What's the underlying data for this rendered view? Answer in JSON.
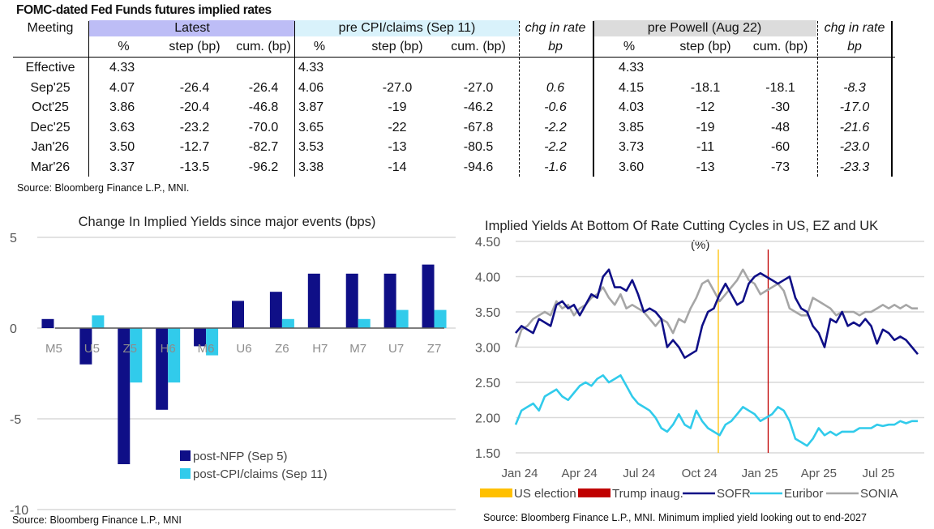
{
  "table": {
    "title": "FOMC-dated Fed Funds futures implied rates",
    "meeting_header": "Meeting",
    "groups": [
      {
        "label": "Latest",
        "color": "#bdbdf6"
      },
      {
        "label": "pre CPI/claims (Sep 11)",
        "color": "#d9f2fb"
      },
      {
        "label": "chg in rate",
        "sub": "bp"
      },
      {
        "label": "pre Powell (Aug 22)",
        "color": "#dcdcdc"
      },
      {
        "label": "chg in rate",
        "sub": "bp"
      }
    ],
    "subheaders": [
      "%",
      "step (bp)",
      "cum. (bp)"
    ],
    "rows": [
      {
        "meeting": "Effective",
        "latest": [
          "4.33",
          "",
          ""
        ],
        "pre_cpi": [
          "4.33",
          "",
          ""
        ],
        "chg1": "",
        "pre_powell": [
          "4.33",
          "",
          ""
        ],
        "chg2": ""
      },
      {
        "meeting": "Sep'25",
        "latest": [
          "4.07",
          "-26.4",
          "-26.4"
        ],
        "pre_cpi": [
          "4.06",
          "-27.0",
          "-27.0"
        ],
        "chg1": "0.6",
        "pre_powell": [
          "4.15",
          "-18.1",
          "-18.1"
        ],
        "chg2": "-8.3"
      },
      {
        "meeting": "Oct'25",
        "latest": [
          "3.86",
          "-20.4",
          "-46.8"
        ],
        "pre_cpi": [
          "3.87",
          "-19",
          "-46.2"
        ],
        "chg1": "-0.6",
        "pre_powell": [
          "4.03",
          "-12",
          "-30"
        ],
        "chg2": "-17.0"
      },
      {
        "meeting": "Dec'25",
        "latest": [
          "3.63",
          "-23.2",
          "-70.0"
        ],
        "pre_cpi": [
          "3.65",
          "-22",
          "-67.8"
        ],
        "chg1": "-2.2",
        "pre_powell": [
          "3.85",
          "-19",
          "-48"
        ],
        "chg2": "-21.6"
      },
      {
        "meeting": "Jan'26",
        "latest": [
          "3.50",
          "-12.7",
          "-82.7"
        ],
        "pre_cpi": [
          "3.53",
          "-13",
          "-80.5"
        ],
        "chg1": "-2.2",
        "pre_powell": [
          "3.73",
          "-11",
          "-60"
        ],
        "chg2": "-23.0"
      },
      {
        "meeting": "Mar'26",
        "latest": [
          "3.37",
          "-13.5",
          "-96.2"
        ],
        "pre_cpi": [
          "3.38",
          "-14",
          "-94.6"
        ],
        "chg1": "-1.6",
        "pre_powell": [
          "3.60",
          "-13",
          "-73"
        ],
        "chg2": "-23.3"
      }
    ],
    "source": "Source: Bloomberg Finance L.P., MNI."
  },
  "chart_data": [
    {
      "type": "bar",
      "title": "Change In Implied Yields since major events (bps)",
      "categories": [
        "M5",
        "U5",
        "Z5",
        "H6",
        "M6",
        "U6",
        "Z6",
        "H7",
        "M7",
        "U7",
        "Z7"
      ],
      "series": [
        {
          "name": "post-NFP (Sep 5)",
          "color": "#0f0f87",
          "values": [
            0.5,
            -2.0,
            -7.5,
            -4.5,
            -1.0,
            1.5,
            2.0,
            3.0,
            3.0,
            3.0,
            3.5
          ]
        },
        {
          "name": "post-CPI/claims (Sep 11)",
          "color": "#31cbeb",
          "values": [
            0,
            0.7,
            -3.0,
            -3.0,
            -1.5,
            0,
            0.5,
            0,
            0.5,
            1.0,
            1.0
          ]
        }
      ],
      "ylim": [
        -10,
        5
      ],
      "yticks": [
        5,
        0,
        -5,
        -10
      ],
      "grid": true,
      "legend": "bottom-center",
      "source": "Source: Bloomberg Finance L.P., MNI"
    },
    {
      "type": "line",
      "title": "Implied Yields At Bottom Of Rate Cutting Cycles in US, EZ and UK",
      "subtitle": "(%)",
      "ylim": [
        1.5,
        4.5
      ],
      "yticks": [
        "4.50",
        "4.00",
        "3.50",
        "3.00",
        "2.50",
        "2.00",
        "1.50"
      ],
      "xticks": [
        "Jan 24",
        "Apr 24",
        "Jul 24",
        "Oct 24",
        "Jan 25",
        "Apr 25",
        "Jul 25"
      ],
      "x_start": "2024-01-01",
      "x_end": "2025-09-15",
      "grid": true,
      "legend": "bottom",
      "events": [
        {
          "name": "US election",
          "date": "2024-11-05",
          "color": "#ffc000"
        },
        {
          "name": "Trump inaug.",
          "date": "2025-01-20",
          "color": "#c00000"
        }
      ],
      "series": [
        {
          "name": "SOFR",
          "color": "#0f0f87",
          "values": [
            3.2,
            3.3,
            3.25,
            3.2,
            3.4,
            3.35,
            3.3,
            3.6,
            3.65,
            3.55,
            3.6,
            3.45,
            3.6,
            3.75,
            3.7,
            4.0,
            4.1,
            3.85,
            3.85,
            3.8,
            3.95,
            3.75,
            3.5,
            3.55,
            3.5,
            3.4,
            3.0,
            3.1,
            3.0,
            2.85,
            2.9,
            2.95,
            3.3,
            3.5,
            3.55,
            3.75,
            3.9,
            3.75,
            3.6,
            3.65,
            3.9,
            4.0,
            4.05,
            4.0,
            3.95,
            3.9,
            3.95,
            4.0,
            3.7,
            3.55,
            3.5,
            3.3,
            3.2,
            3.0,
            3.4,
            3.35,
            3.5,
            3.3,
            3.35,
            3.3,
            3.4,
            3.3,
            3.05,
            3.25,
            3.2,
            3.1,
            3.15,
            3.1,
            3.0,
            2.9
          ]
        },
        {
          "name": "Euribor",
          "color": "#31cbeb",
          "values": [
            1.9,
            2.1,
            2.15,
            2.2,
            2.1,
            2.3,
            2.35,
            2.4,
            2.3,
            2.25,
            2.35,
            2.45,
            2.5,
            2.45,
            2.55,
            2.6,
            2.5,
            2.55,
            2.6,
            2.45,
            2.3,
            2.2,
            2.15,
            2.1,
            2.0,
            1.85,
            1.8,
            1.9,
            2.05,
            1.9,
            1.85,
            2.1,
            1.95,
            1.85,
            1.8,
            1.75,
            1.9,
            1.95,
            2.05,
            2.15,
            2.1,
            2.05,
            1.95,
            2.0,
            2.05,
            2.15,
            2.1,
            1.95,
            1.7,
            1.65,
            1.6,
            1.7,
            1.85,
            1.75,
            1.8,
            1.75,
            1.8,
            1.8,
            1.8,
            1.85,
            1.85,
            1.85,
            1.9,
            1.88,
            1.9,
            1.9,
            1.95,
            1.92,
            1.95,
            1.95
          ]
        },
        {
          "name": "SONIA",
          "color": "#a6a6a6",
          "values": [
            3.0,
            3.25,
            3.3,
            3.4,
            3.45,
            3.5,
            3.45,
            3.65,
            3.55,
            3.6,
            3.45,
            3.55,
            3.6,
            3.7,
            3.75,
            3.85,
            3.7,
            3.6,
            3.75,
            3.55,
            3.6,
            3.55,
            3.5,
            3.4,
            3.3,
            3.4,
            3.35,
            3.2,
            3.4,
            3.35,
            3.55,
            3.7,
            3.9,
            3.95,
            3.8,
            3.65,
            3.75,
            3.85,
            3.95,
            4.1,
            3.95,
            3.9,
            3.75,
            3.8,
            3.85,
            3.9,
            3.8,
            3.55,
            3.5,
            3.45,
            3.45,
            3.7,
            3.65,
            3.6,
            3.55,
            3.45,
            3.5,
            3.5,
            3.5,
            3.45,
            3.5,
            3.5,
            3.55,
            3.6,
            3.55,
            3.6,
            3.55,
            3.6,
            3.55,
            3.55
          ]
        }
      ],
      "source": "Source: Bloomberg Finance L.P., MNI. Minimum implied yield looking out to end-2027"
    }
  ]
}
